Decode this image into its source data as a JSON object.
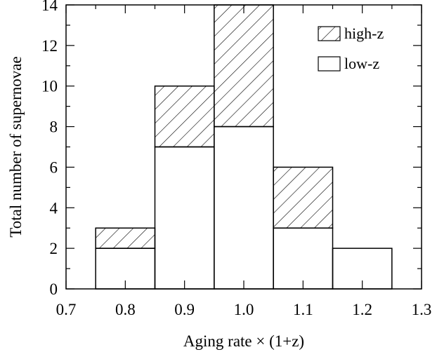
{
  "chart_data": {
    "type": "histogram",
    "xlabel": "Aging rate × (1+z)",
    "ylabel": "Total number of supernovae",
    "xlim": [
      0.7,
      1.3
    ],
    "ylim": [
      0,
      14
    ],
    "xticks": [
      "0.7",
      "0.8",
      "0.9",
      "1.0",
      "1.1",
      "1.2",
      "1.3"
    ],
    "yticks": [
      "0",
      "2",
      "4",
      "6",
      "8",
      "10",
      "12",
      "14"
    ],
    "bin_edges": [
      0.75,
      0.85,
      0.95,
      1.05,
      1.15,
      1.25
    ],
    "stacked": true,
    "series": [
      {
        "name": "low-z",
        "values": [
          2,
          7,
          8,
          3,
          2
        ],
        "fill": "none"
      },
      {
        "name": "high-z",
        "values": [
          1,
          3,
          6,
          3,
          0
        ],
        "fill": "hatched"
      }
    ],
    "legend": {
      "placement": "top-right",
      "entries": [
        "high-z",
        "low-z"
      ]
    },
    "grid": false
  }
}
